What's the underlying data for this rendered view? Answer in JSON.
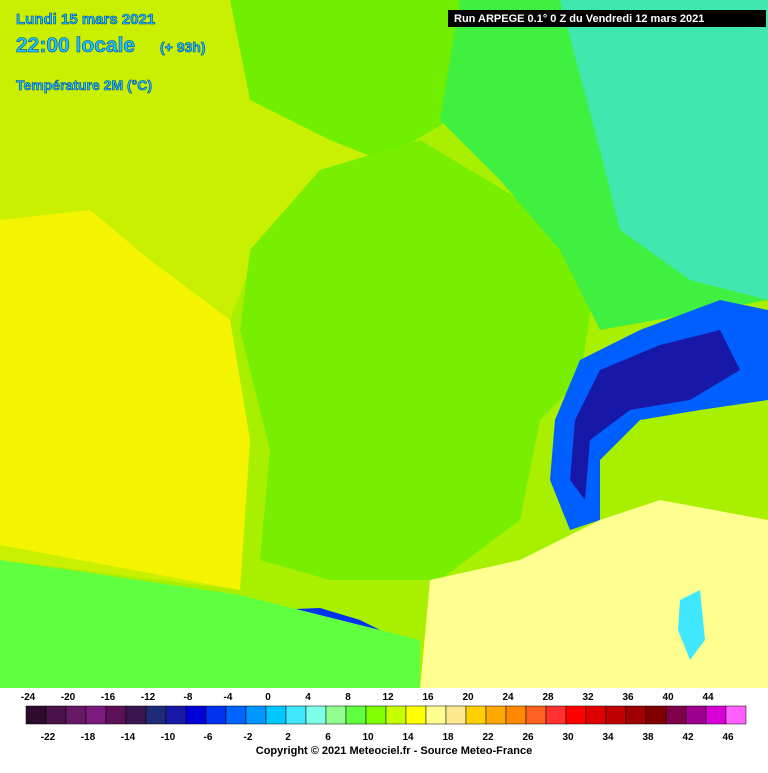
{
  "header": {
    "date": "Lundi 15 mars 2021",
    "time": "22:00 locale",
    "lead": "(+ 93h)",
    "variable": "Température 2M (°C)",
    "run": "Run ARPEGE 0.1° 0 Z du Vendredi 12 mars 2021"
  },
  "legend": {
    "values": [
      -24,
      -22,
      -20,
      -18,
      -16,
      -14,
      -12,
      -10,
      -8,
      -6,
      -4,
      -2,
      0,
      2,
      4,
      6,
      8,
      10,
      12,
      14,
      16,
      18,
      20,
      22,
      24,
      26,
      28,
      30,
      32,
      34,
      36,
      38,
      40,
      42,
      44,
      46
    ],
    "colors": [
      "#2e0a2e",
      "#4a1248",
      "#661866",
      "#7a1a7a",
      "#5c1058",
      "#3a1650",
      "#1c2a78",
      "#1818a8",
      "#0000d8",
      "#0030f0",
      "#0064ff",
      "#0096ff",
      "#00c8ff",
      "#40e8ff",
      "#80ffe8",
      "#90ff90",
      "#60ff40",
      "#80ff00",
      "#c8ff00",
      "#ffff00",
      "#ffff90",
      "#ffe890",
      "#ffd000",
      "#ffa800",
      "#ff8800",
      "#ff6020",
      "#ff3030",
      "#ff0000",
      "#e00000",
      "#c00000",
      "#a00000",
      "#800000",
      "#800048",
      "#a00090",
      "#d800d8",
      "#ff60ff"
    ]
  },
  "footer": {
    "copyright": "Copyright © 2021 Meteociel.fr - Source Meteo-France"
  }
}
